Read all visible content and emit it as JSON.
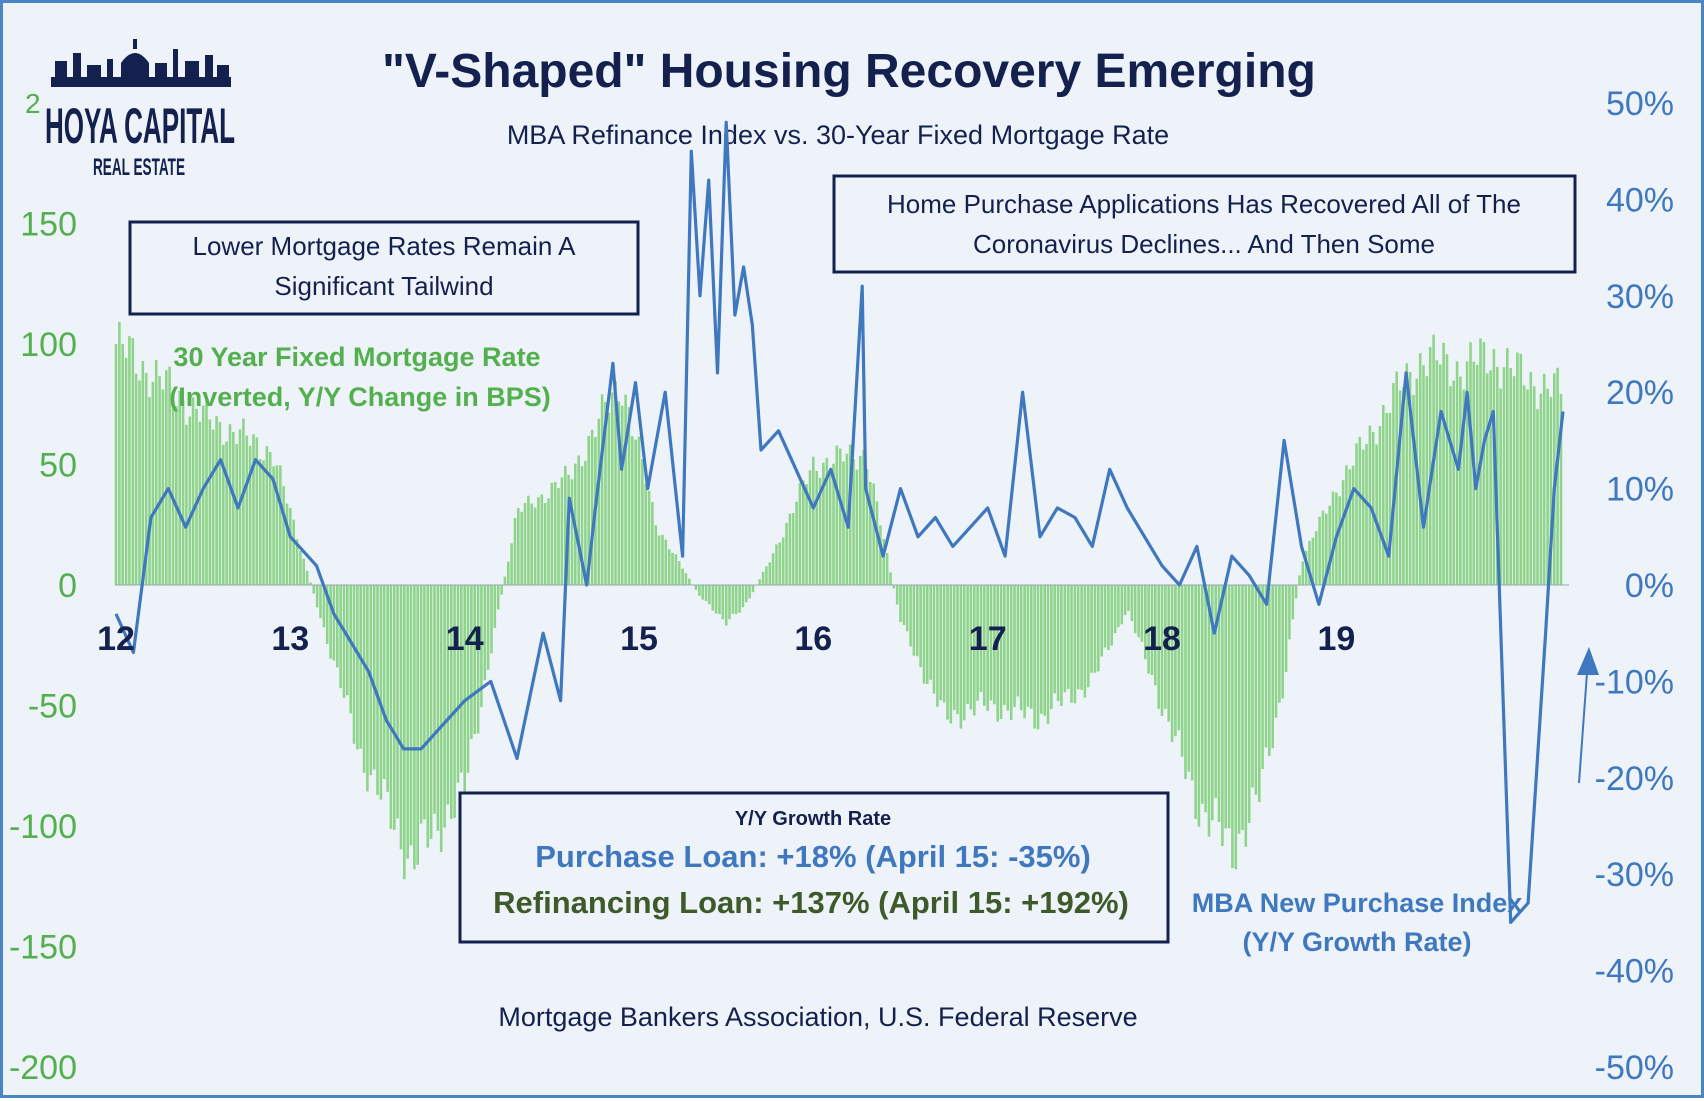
{
  "title": "\"V-Shaped\" Housing Recovery Emerging",
  "subtitle": "MBA Refinance Index vs. 30-Year Fixed Mortgage Rate",
  "source": "Mortgage Bankers Association, U.S. Federal Reserve",
  "logo": {
    "line1": "HOYA CAPITAL",
    "line2": "REAL ESTATE",
    "corner_char": "2"
  },
  "annotations": {
    "left_box": {
      "line1": "Lower Mortgage Rates Remain A",
      "line2": "Significant Tailwind"
    },
    "right_box": {
      "line1": "Home Purchase Applications Has Recovered All of The",
      "line2": "Coronavirus Declines... And Then Some"
    },
    "green_label": {
      "line1": "30 Year Fixed Mortgage Rate",
      "line2": "(Inverted, Y/Y Change in BPS)"
    },
    "blue_label": {
      "line1": "MBA New Purchase Index",
      "line2": "(Y/Y Growth Rate)"
    },
    "growth_box": {
      "title": "Y/Y Growth Rate",
      "purchase": "Purchase Loan: +18% (April 15: -35%)",
      "refi": "Refinancing Loan: +137% (April 15: +192%)"
    }
  },
  "colors": {
    "bars": "#8fd48b",
    "line": "#3f78bf",
    "navy": "#14204e",
    "green_text": "#54b04f",
    "blue_text": "#3f78bf"
  },
  "chart_data": {
    "type": "bar+line",
    "x_tick_labels": [
      "12",
      "13",
      "14",
      "15",
      "16",
      "17",
      "18",
      "19"
    ],
    "x_range": [
      2012.0,
      2020.3
    ],
    "y_left": {
      "ticks": [
        "150",
        "100",
        "50",
        "0",
        "-50",
        "-100",
        "-150",
        "-200"
      ],
      "range": [
        -200,
        200
      ]
    },
    "y_right": {
      "ticks": [
        "50%",
        "40%",
        "30%",
        "20%",
        "10%",
        "0%",
        "-10%",
        "-20%",
        "-30%",
        "-40%",
        "-50%"
      ],
      "range": [
        -50,
        50
      ]
    },
    "series": [
      {
        "name": "30 Year Fixed Mortgage Rate",
        "type": "bar",
        "axis": "left",
        "x": [
          2012.0,
          2012.5,
          2012.9,
          2013.1,
          2013.4,
          2013.7,
          2014.0,
          2014.3,
          2014.6,
          2014.9,
          2015.1,
          2015.35,
          2015.5,
          2015.6,
          2015.75,
          2016.0,
          2016.3,
          2016.5,
          2016.75,
          2017.0,
          2017.3,
          2017.6,
          2017.8,
          2018.0,
          2018.2,
          2018.4,
          2018.55,
          2018.7,
          2018.8,
          2019.0,
          2019.3,
          2019.5,
          2019.7,
          2019.9,
          2020.1,
          2020.3
        ],
        "values": [
          100,
          70,
          55,
          5,
          -70,
          -115,
          -85,
          30,
          45,
          85,
          25,
          -5,
          -15,
          -10,
          10,
          50,
          55,
          -15,
          -55,
          -50,
          -55,
          -40,
          -10,
          -50,
          -90,
          -110,
          -90,
          -40,
          10,
          40,
          75,
          95,
          90,
          95,
          85,
          80
        ]
      },
      {
        "name": "MBA New Purchase Index",
        "type": "line",
        "axis": "right",
        "x": [
          2012.0,
          2012.1,
          2012.2,
          2012.3,
          2012.4,
          2012.5,
          2012.6,
          2012.7,
          2012.8,
          2012.9,
          2013.0,
          2013.15,
          2013.25,
          2013.35,
          2013.45,
          2013.55,
          2013.65,
          2013.75,
          2013.85,
          2014.0,
          2014.15,
          2014.3,
          2014.45,
          2014.55,
          2014.6,
          2014.7,
          2014.75,
          2014.85,
          2014.9,
          2014.98,
          2015.05,
          2015.15,
          2015.25,
          2015.3,
          2015.35,
          2015.4,
          2015.45,
          2015.5,
          2015.55,
          2015.6,
          2015.65,
          2015.7,
          2015.8,
          2015.9,
          2016.0,
          2016.1,
          2016.2,
          2016.28,
          2016.3,
          2016.4,
          2016.5,
          2016.6,
          2016.7,
          2016.8,
          2016.9,
          2017.0,
          2017.1,
          2017.2,
          2017.3,
          2017.4,
          2017.5,
          2017.6,
          2017.7,
          2017.8,
          2017.9,
          2018.0,
          2018.1,
          2018.2,
          2018.3,
          2018.4,
          2018.5,
          2018.6,
          2018.7,
          2018.8,
          2018.9,
          2019.0,
          2019.1,
          2019.2,
          2019.3,
          2019.4,
          2019.5,
          2019.6,
          2019.7,
          2019.75,
          2019.8,
          2019.85,
          2019.9,
          2020.0,
          2020.1,
          2020.2,
          2020.25,
          2020.3
        ],
        "values": [
          -3,
          -7,
          7,
          10,
          6,
          10,
          13,
          8,
          13,
          11,
          5,
          2,
          -3,
          -6,
          -9,
          -14,
          -17,
          -17,
          -15,
          -12,
          -10,
          -18,
          -5,
          -12,
          9,
          0,
          8,
          23,
          12,
          21,
          10,
          20,
          3,
          45,
          30,
          42,
          22,
          48,
          28,
          33,
          27,
          14,
          16,
          12,
          8,
          12,
          6,
          31,
          10,
          3,
          10,
          5,
          7,
          4,
          6,
          8,
          3,
          20,
          5,
          8,
          7,
          4,
          12,
          8,
          5,
          2,
          0,
          4,
          -5,
          3,
          1,
          -2,
          15,
          4,
          -2,
          5,
          10,
          8,
          3,
          22,
          6,
          18,
          12,
          20,
          10,
          15,
          18,
          -35,
          -33,
          -5,
          10,
          18
        ]
      }
    ]
  }
}
